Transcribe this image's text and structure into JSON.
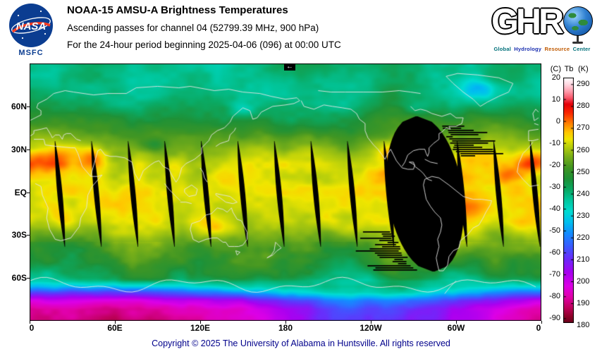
{
  "header": {
    "nasa_text": "NASA",
    "msfc": "MSFC",
    "title": "NOAA-15 AMSU-A Brightness Temperatures",
    "subtitle": "Ascending passes for channel 04 (52799.39 MHz, 900 hPa)",
    "period": "For the 24-hour period beginning 2025-04-06 (096) at 00:00 UTC",
    "ghrc_letters": [
      "G",
      "H",
      "R"
    ],
    "ghrc_tagline": [
      "Global",
      "Hydrology",
      "Resource",
      "Center"
    ]
  },
  "map": {
    "marker": "←",
    "lat_labels": [
      "60N",
      "30N",
      "EQ",
      "30S",
      "60S"
    ],
    "lon_labels": [
      "0",
      "60E",
      "120E",
      "180",
      "120W",
      "60W",
      "0"
    ]
  },
  "colorbar": {
    "unit_c": "(C)",
    "unit_tb": "Tb",
    "unit_k": "(K)",
    "celsius_ticks": [
      20,
      10,
      0,
      -10,
      -20,
      -30,
      -40,
      -50,
      -60,
      -70,
      -80,
      -90
    ],
    "kelvin_ticks": [
      290,
      280,
      270,
      260,
      250,
      240,
      230,
      220,
      210,
      200,
      190,
      180
    ]
  },
  "footer": {
    "copyright": "Copyright © 2025 The University of Alabama in Huntsville. All rights reserved"
  },
  "brand": {
    "nasa_blue": "#0b3d91",
    "nasa_red": "#fc3d21",
    "tagline_colors": [
      "#00707a",
      "#1a2fb0",
      "#c05a00",
      "#00707a"
    ],
    "copyright_color": "#00008b"
  },
  "chart_data": {
    "type": "heatmap",
    "title": "NOAA-15 AMSU-A Brightness Temperatures, ascending passes, channel 04 (52799.39 MHz, 900 hPa), 24-hour period beginning 2025-04-06 (096) at 00:00 UTC",
    "variable": "Brightness temperature Tb",
    "units": [
      "C",
      "K"
    ],
    "scale_min_k": 180,
    "scale_max_k": 290,
    "colorbar_celsius_ticks": [
      20,
      10,
      0,
      -10,
      -20,
      -30,
      -40,
      -50,
      -60,
      -70,
      -80,
      -90
    ],
    "colorbar_kelvin_ticks": [
      290,
      280,
      270,
      260,
      250,
      240,
      230,
      220,
      210,
      200,
      190,
      180
    ],
    "lat_ticks": [
      "60N",
      "30N",
      "EQ",
      "30S",
      "60S"
    ],
    "lon_ticks": [
      "0",
      "60E",
      "120E",
      "180",
      "120W",
      "60W",
      "0"
    ],
    "legend_position": "right",
    "notes": "Global equirectangular map, longitude 0E eastward to 0E; black sliver gaps between ascending orbital swaths; large black region of missing passes near 60W"
  }
}
